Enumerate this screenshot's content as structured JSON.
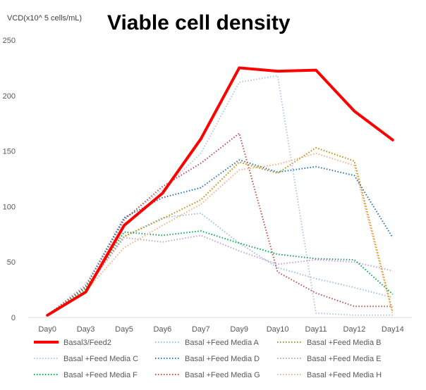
{
  "chart_data": {
    "type": "line",
    "title": "Viable cell density",
    "ylabel": "VCD(x10^ 5 cells/mL)",
    "xlabel": "",
    "ylim": [
      0,
      250
    ],
    "yticks": [
      "0",
      "50",
      "100",
      "150",
      "200",
      "250"
    ],
    "categories": [
      "Day0",
      "Day3",
      "Day5",
      "Day6",
      "Day7",
      "Day9",
      "Day10",
      "Day11",
      "Day12",
      "Day14"
    ],
    "grid": false,
    "legend_position": "bottom",
    "series": [
      {
        "name": "Basal3/Feed2",
        "color": "#ff0000",
        "style": "solid",
        "values": [
          2,
          23,
          83,
          112,
          161,
          225,
          222,
          223,
          186,
          160
        ]
      },
      {
        "name": "Basal +Feed Media A",
        "color": "#9dc3e6",
        "style": "dotted",
        "values": [
          2,
          25,
          73,
          90,
          94,
          67,
          45,
          35,
          27,
          18
        ]
      },
      {
        "name": "Basal +Feed Media B",
        "color": "#bf9000",
        "style": "dotted",
        "values": [
          2,
          27,
          73,
          89,
          106,
          140,
          130,
          153,
          141,
          5
        ]
      },
      {
        "name": "Basal +Feed Media C",
        "color": "#b4c7e7",
        "style": "dotted",
        "values": [
          2,
          30,
          89,
          115,
          148,
          212,
          218,
          4,
          2,
          2
        ]
      },
      {
        "name": "Basal +Feed Media D",
        "color": "#2e75b6",
        "style": "dotted",
        "values": [
          2,
          28,
          90,
          108,
          117,
          142,
          131,
          136,
          128,
          72
        ]
      },
      {
        "name": "Basal +Feed Media E",
        "color": "#c9a0dc",
        "style": "dotted",
        "values": [
          2,
          26,
          72,
          68,
          74,
          60,
          48,
          52,
          50,
          42
        ]
      },
      {
        "name": "Basal +Feed Media F",
        "color": "#00b050",
        "style": "dotted",
        "values": [
          2,
          26,
          77,
          74,
          78,
          67,
          57,
          53,
          52,
          21
        ]
      },
      {
        "name": "Basal +Feed Media G",
        "color": "#c0504d",
        "style": "dotted",
        "values": [
          2,
          28,
          88,
          118,
          139,
          166,
          41,
          22,
          10,
          10
        ]
      },
      {
        "name": "Basal +Feed Media H",
        "color": "#f4b183",
        "style": "dotted",
        "values": [
          2,
          24,
          63,
          83,
          102,
          133,
          138,
          148,
          137,
          3
        ]
      }
    ]
  }
}
